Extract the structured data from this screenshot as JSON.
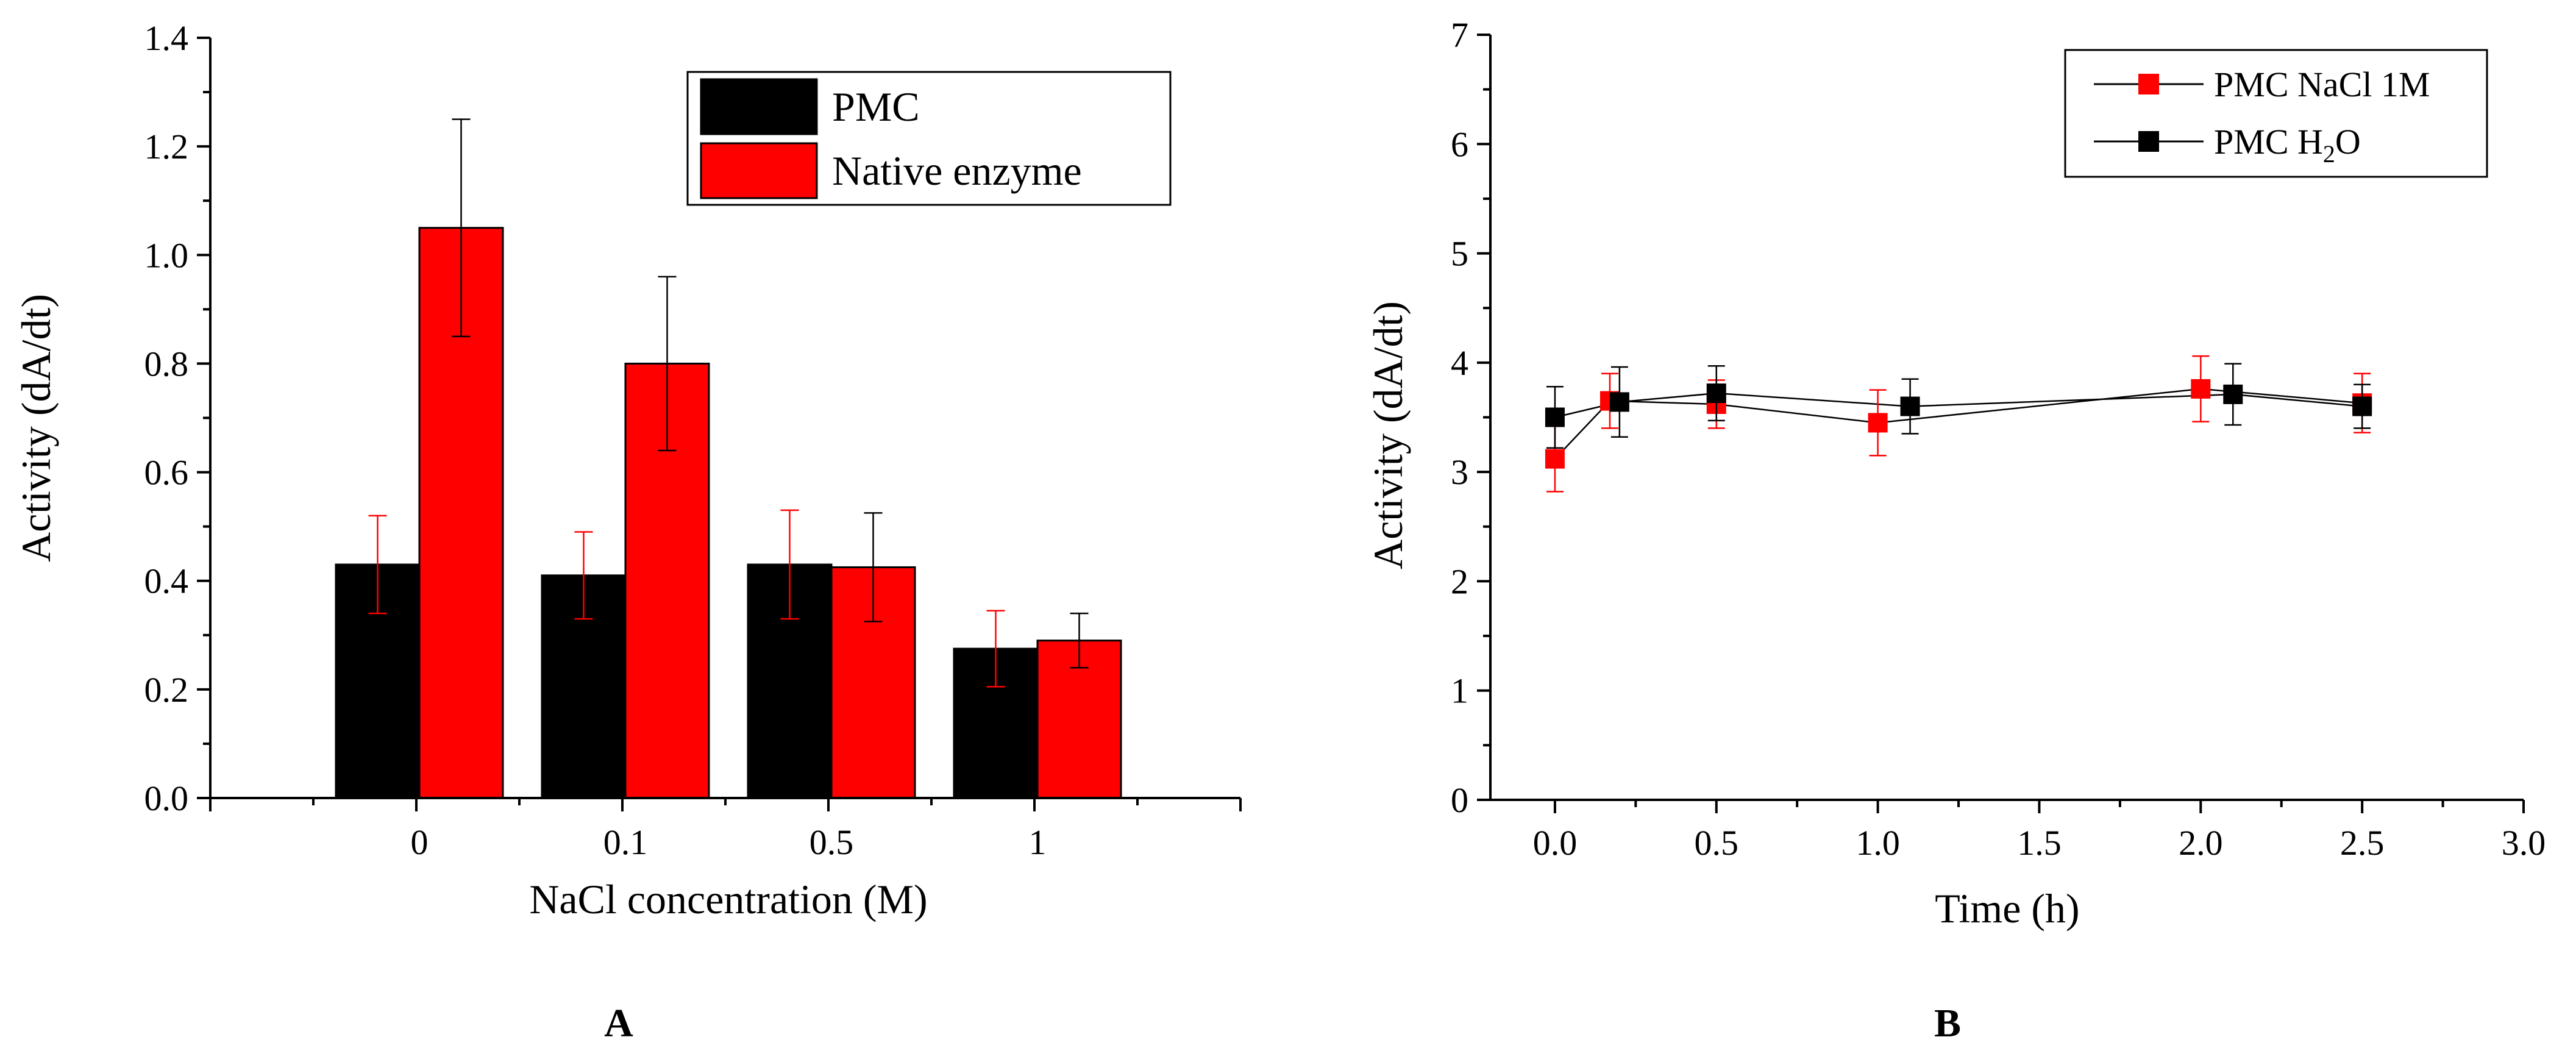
{
  "chart_data": [
    {
      "panel": "A",
      "type": "bar",
      "title": "",
      "xlabel": "NaCl concentration (M)",
      "ylabel": "Activity (dA/dt)",
      "ylim": [
        0,
        1.4
      ],
      "yticks": [
        "0.0",
        "0.2",
        "0.4",
        "0.6",
        "0.8",
        "1.0",
        "1.2",
        "1.4"
      ],
      "categories": [
        "0",
        "0.1",
        "0.5",
        "1"
      ],
      "legend_position": "top-right",
      "series": [
        {
          "name": "PMC",
          "color": "#000000",
          "errorbar_color": "#ff0000",
          "values": [
            0.43,
            0.41,
            0.43,
            0.275
          ],
          "errors": [
            0.09,
            0.08,
            0.1,
            0.07
          ]
        },
        {
          "name": "Native enzyme",
          "color": "#ff0000",
          "errorbar_color": "#000000",
          "values": [
            1.05,
            0.8,
            0.425,
            0.29
          ],
          "errors": [
            0.2,
            0.16,
            0.1,
            0.05
          ]
        }
      ],
      "panel_label": "A"
    },
    {
      "panel": "B",
      "type": "line",
      "title": "",
      "xlabel": "Time (h)",
      "ylabel": "Activity (dA/dt)",
      "xlim": [
        -0.2,
        3.0
      ],
      "ylim": [
        0,
        7
      ],
      "xticks": [
        "0.0",
        "0.5",
        "1.0",
        "1.5",
        "2.0",
        "2.5",
        "3.0"
      ],
      "yticks": [
        "0",
        "1",
        "2",
        "3",
        "4",
        "5",
        "6",
        "7"
      ],
      "legend_position": "top-right",
      "series": [
        {
          "name": "PMC NaCl 1M",
          "legend_label": "PMC NaCl 1M",
          "marker_color": "#ff0000",
          "line_color": "#000000",
          "x": [
            0,
            0.17,
            0.5,
            1.0,
            2.0,
            2.5
          ],
          "y": [
            3.12,
            3.65,
            3.62,
            3.45,
            3.76,
            3.63
          ],
          "errors": [
            0.3,
            0.25,
            0.22,
            0.3,
            0.3,
            0.27
          ]
        },
        {
          "name": "PMC H2O",
          "legend_prefix": "PMC H",
          "legend_sub": "2",
          "legend_suffix": "O",
          "marker_color": "#000000",
          "line_color": "#000000",
          "x": [
            0,
            0.2,
            0.5,
            1.1,
            2.1,
            2.5
          ],
          "y": [
            3.5,
            3.64,
            3.72,
            3.6,
            3.71,
            3.6
          ],
          "errors": [
            0.28,
            0.32,
            0.25,
            0.25,
            0.28,
            0.2
          ]
        }
      ],
      "panel_label": "B"
    }
  ]
}
